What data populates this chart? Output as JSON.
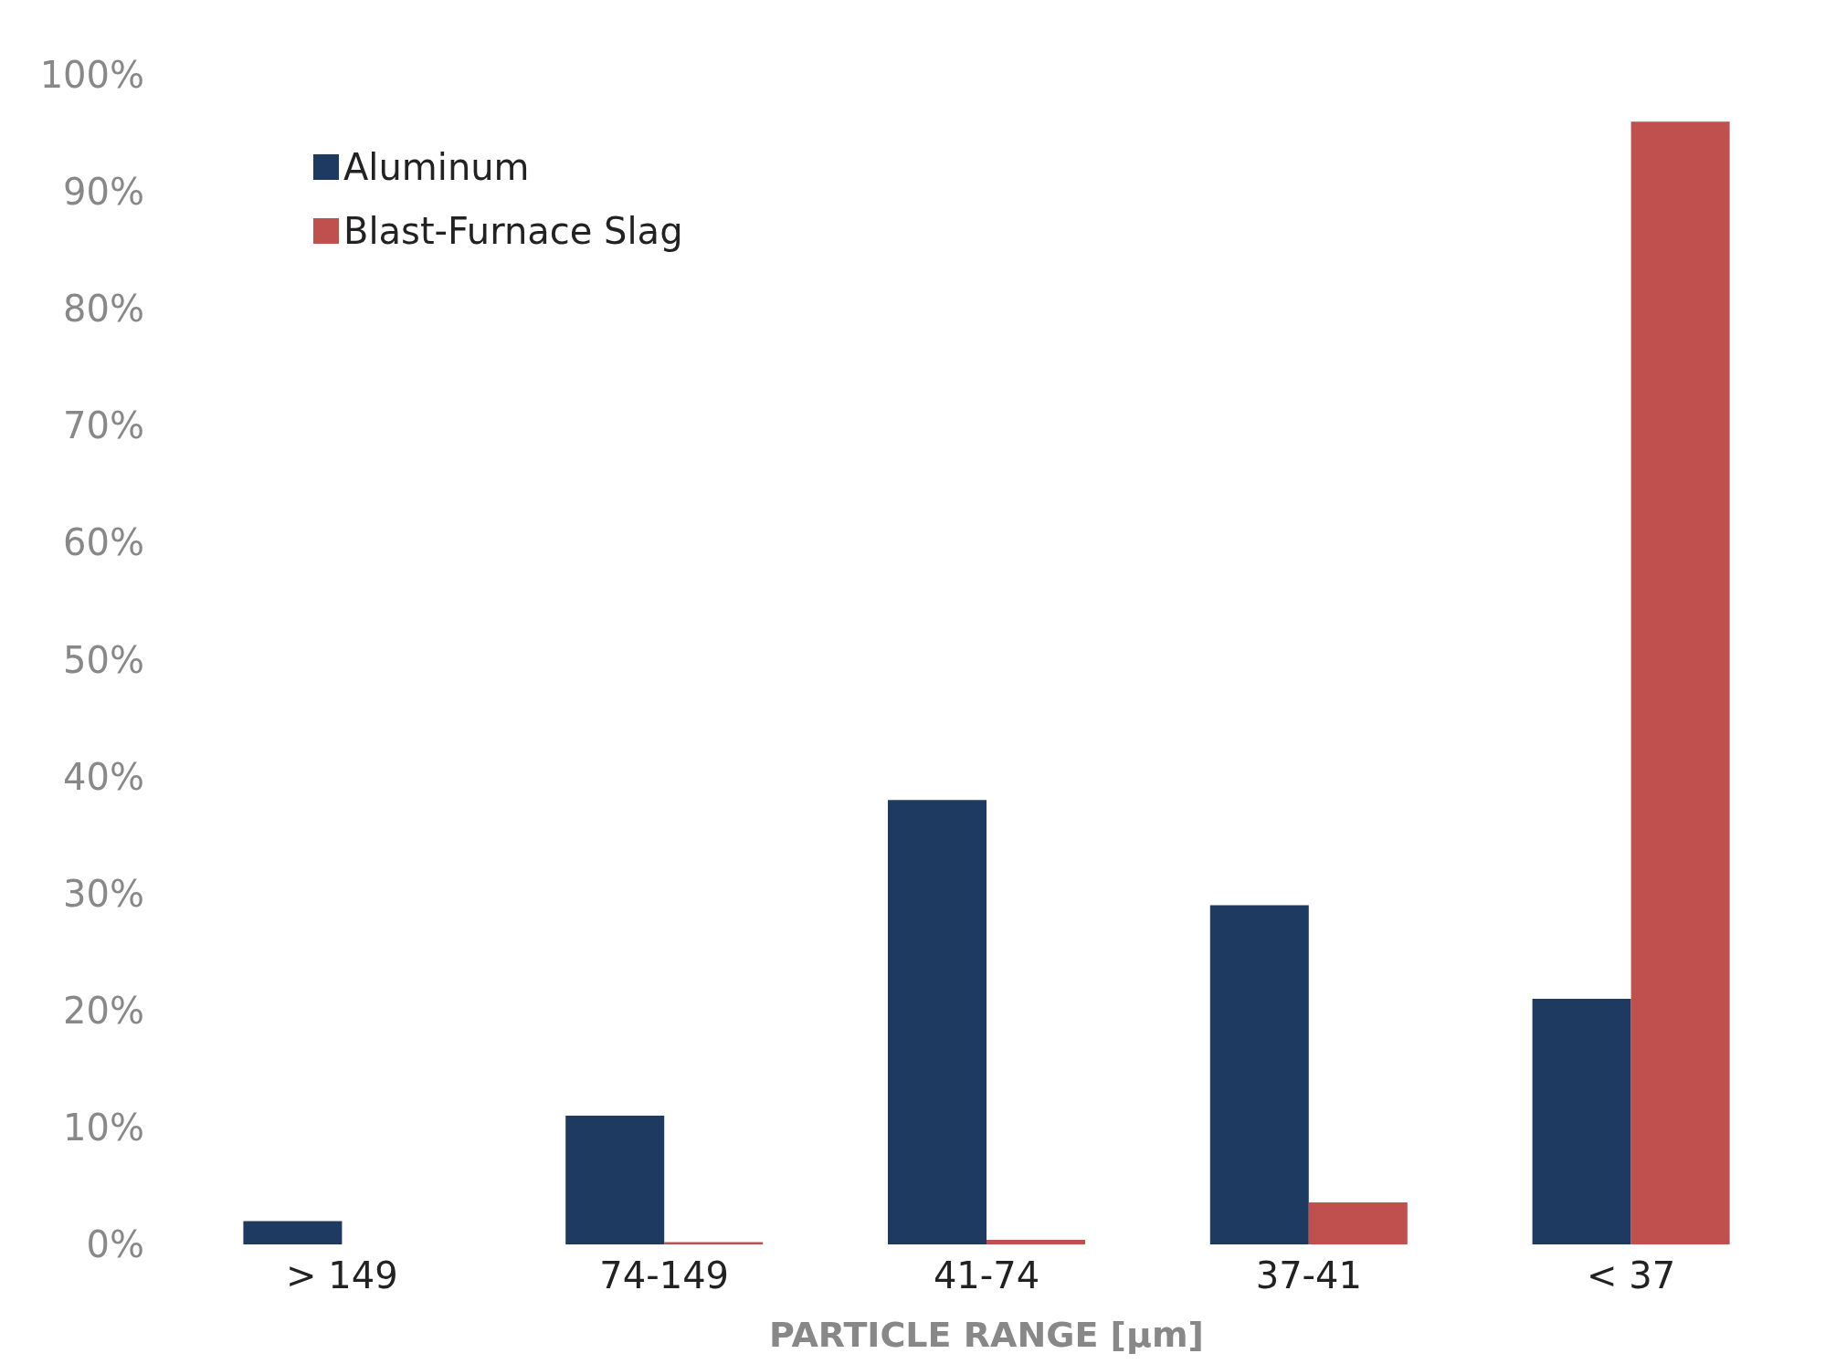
{
  "chart_data": {
    "type": "bar",
    "xlabel": "PARTICLE RANGE [μm]",
    "categories": [
      "> 149",
      "74-149",
      "41-74",
      "37-41",
      "< 37"
    ],
    "series": [
      {
        "name": "Aluminum",
        "color": "#1f3a60",
        "values": [
          2,
          11,
          38,
          29,
          21
        ]
      },
      {
        "name": "Blast-Furnace Slag",
        "color": "#c0504d",
        "values": [
          0,
          0.2,
          0.4,
          3.6,
          96
        ]
      }
    ],
    "ylim": [
      0,
      100
    ],
    "yticks": [
      {
        "value": 0,
        "label": "0%"
      },
      {
        "value": 10,
        "label": "10%"
      },
      {
        "value": 20,
        "label": "20%"
      },
      {
        "value": 30,
        "label": "30%"
      },
      {
        "value": 40,
        "label": "40%"
      },
      {
        "value": 50,
        "label": "50%"
      },
      {
        "value": 60,
        "label": "60%"
      },
      {
        "value": 70,
        "label": "70%"
      },
      {
        "value": 80,
        "label": "80%"
      },
      {
        "value": 90,
        "label": "90%"
      },
      {
        "value": 100,
        "label": "100%"
      }
    ],
    "grid": false,
    "legend": "top left"
  }
}
